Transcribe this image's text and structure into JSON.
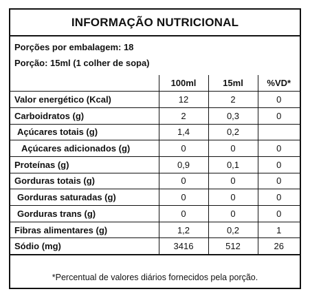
{
  "title": "INFORMAÇÃO NUTRICIONAL",
  "serving": {
    "per_package": "Porções por embalagem: 18",
    "portion": "Porção: 15ml (1 colher de sopa)"
  },
  "columns": [
    "",
    "100ml",
    "15ml",
    "%VD*"
  ],
  "rows": [
    {
      "name": "Valor energético (Kcal)",
      "v100": "12",
      "v15": "2",
      "vd": "0"
    },
    {
      "name": "Carboidratos (g)",
      "v100": "2",
      "v15": "0,3",
      "vd": "0"
    },
    {
      "name": "Açúcares totais (g)",
      "v100": "1,4",
      "v15": "0,2",
      "vd": ""
    },
    {
      "name": "Açúcares adicionados (g)",
      "v100": "0",
      "v15": "0",
      "vd": "0"
    },
    {
      "name": "Proteínas (g)",
      "v100": "0,9",
      "v15": "0,1",
      "vd": "0"
    },
    {
      "name": "Gorduras totais (g)",
      "v100": "0",
      "v15": "0",
      "vd": "0"
    },
    {
      "name": "Gorduras saturadas (g)",
      "v100": "0",
      "v15": "0",
      "vd": "0"
    },
    {
      "name": "Gorduras trans (g)",
      "v100": "0",
      "v15": "0",
      "vd": "0"
    },
    {
      "name": "Fibras alimentares (g)",
      "v100": "1,2",
      "v15": "0,2",
      "vd": "1"
    },
    {
      "name": "Sódio (mg)",
      "v100": "3416",
      "v15": "512",
      "vd": "26"
    }
  ],
  "footnote": "*Percentual de valores diários fornecidos pela porção."
}
